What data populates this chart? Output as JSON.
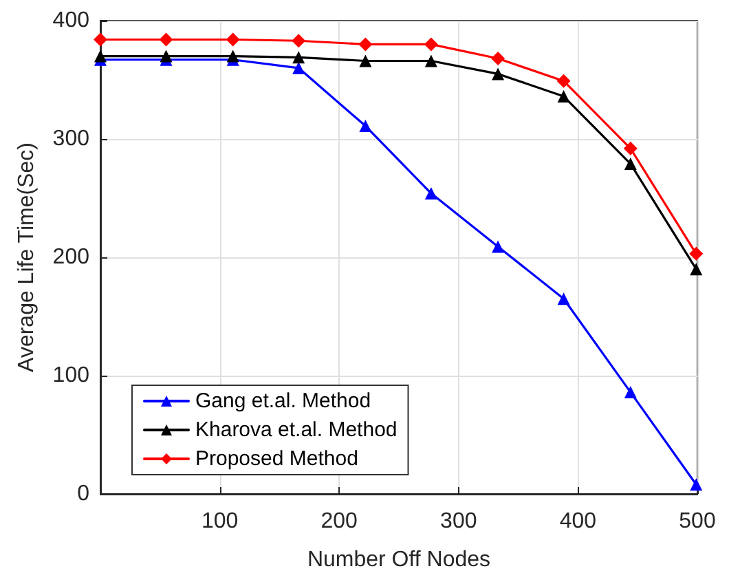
{
  "chart_data": {
    "type": "line",
    "xlabel": "Number Off Nodes",
    "ylabel": "Average Life Time(Sec)",
    "x": [
      0,
      55,
      111,
      166,
      222,
      277,
      333,
      388,
      444,
      499
    ],
    "series": [
      {
        "name": "Gang et.al. Method",
        "color": "#0000ff",
        "values": [
          367,
          367,
          367,
          360,
          311,
          254,
          209,
          165,
          86,
          8
        ]
      },
      {
        "name": "Kharova et.al. Method",
        "color": "#000000",
        "values": [
          370,
          370,
          370,
          369,
          366,
          366,
          355,
          336,
          279,
          190
        ]
      },
      {
        "name": "Proposed Method",
        "color": "#ff0000",
        "marker": "diamond",
        "values": [
          384,
          384,
          384,
          383,
          380,
          380,
          368,
          349,
          292,
          203
        ]
      }
    ],
    "xlim": [
      0,
      500
    ],
    "xticks": [
      100,
      200,
      300,
      400,
      500
    ],
    "ylim": [
      0,
      400
    ],
    "yticks": [
      0,
      100,
      200,
      300,
      400
    ],
    "grid": true,
    "legend": "bottom left",
    "marker": "triangle",
    "line_style": "solid"
  }
}
